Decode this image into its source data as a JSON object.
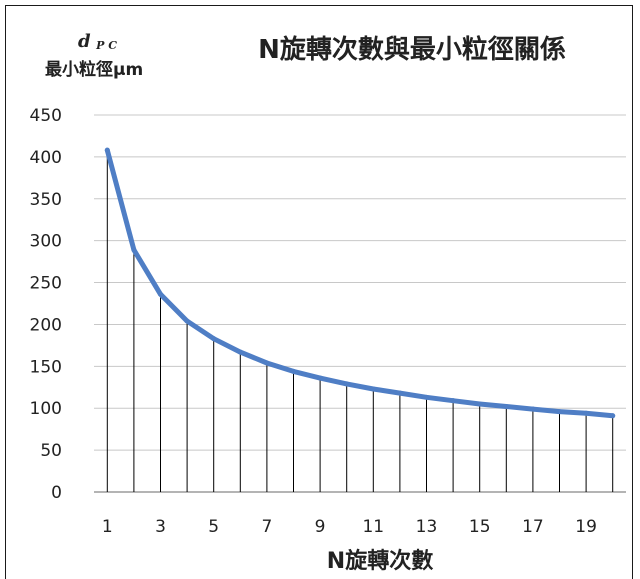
{
  "chart_data": {
    "type": "line",
    "title": "N旋轉次數與最小粒徑關係",
    "xlabel": "N旋轉次數",
    "ylabel_symbol": "d",
    "ylabel_subscript": "P C",
    "ylabel": "最小粒徑μm",
    "x": [
      1,
      2,
      3,
      4,
      5,
      6,
      7,
      8,
      9,
      10,
      11,
      12,
      13,
      14,
      15,
      16,
      17,
      18,
      19,
      20
    ],
    "series": [
      {
        "values": [
          408,
          289,
          236,
          204,
          183,
          167,
          154,
          144,
          136,
          129,
          123,
          118,
          113,
          109,
          105,
          102,
          99,
          96,
          94,
          91
        ]
      }
    ],
    "x_tick_labels": [
      "1",
      "3",
      "5",
      "7",
      "9",
      "11",
      "13",
      "15",
      "17",
      "19"
    ],
    "y_ticks": [
      0,
      50,
      100,
      150,
      200,
      250,
      300,
      350,
      400,
      450
    ],
    "ylim": [
      0,
      450
    ],
    "grid": true,
    "drop_lines": true,
    "line_color": "#4F7EC5",
    "grid_color": "#C8C8C8",
    "drop_line_color": "#000000"
  }
}
